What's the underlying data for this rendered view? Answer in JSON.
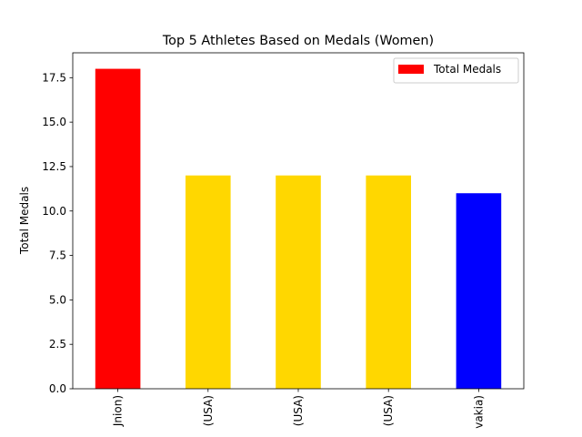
{
  "chart_data": {
    "type": "bar",
    "title": "Top 5 Athletes Based on Medals (Women)",
    "xlabel": "",
    "ylabel": "Total Medals",
    "categories": [
      "Jnion)",
      "(USA)",
      "(USA)",
      "(USA)",
      "vakia)"
    ],
    "series": [
      {
        "name": "Total Medals",
        "values": [
          18,
          12,
          12,
          12,
          11
        ],
        "colors": [
          "#ff0000",
          "#ffd700",
          "#ffd700",
          "#ffd700",
          "#0000ff"
        ]
      }
    ],
    "ylim": [
      0,
      18.9
    ],
    "yticks": [
      "0.0",
      "2.5",
      "5.0",
      "7.5",
      "10.0",
      "12.5",
      "15.0",
      "17.5"
    ],
    "legend": {
      "position": "top-right",
      "label": "Total Medals",
      "color": "#ff0000"
    },
    "grid": false
  }
}
